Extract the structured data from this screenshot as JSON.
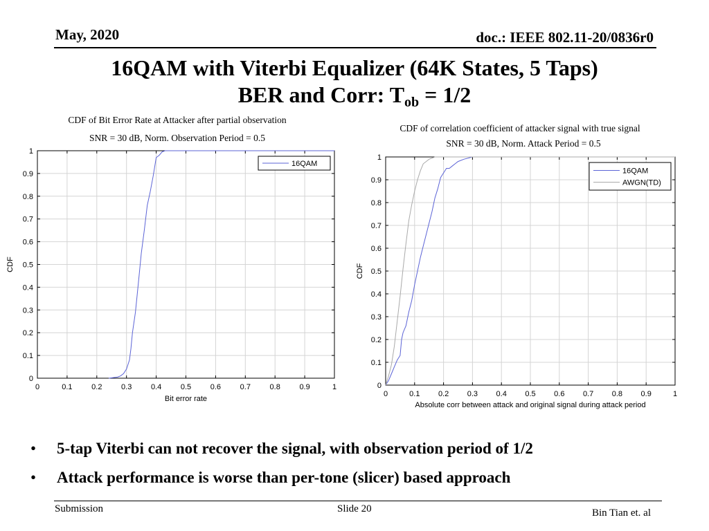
{
  "header": {
    "date": "May, 2020",
    "doc": "doc.: IEEE 802.11-20/0836r0"
  },
  "slide_title": {
    "line1": "16QAM with Viterbi Equalizer (64K States, 5 Taps)",
    "line2_prefix": "BER and Corr: T",
    "line2_sub": "ob",
    "line2_suffix": " = 1/2"
  },
  "chart_data": [
    {
      "type": "line",
      "title": "CDF of Bit Error Rate at Attacker after partial observation",
      "subtitle": "SNR = 30 dB, Norm. Observation Period = 0.5",
      "xlabel": "Bit error rate",
      "ylabel": "CDF",
      "xlim": [
        0,
        1
      ],
      "ylim": [
        0,
        1
      ],
      "x_ticks": [
        "0",
        "0.1",
        "0.2",
        "0.3",
        "0.4",
        "0.5",
        "0.6",
        "0.7",
        "0.8",
        "0.9",
        "1"
      ],
      "y_ticks": [
        "0",
        "0.1",
        "0.2",
        "0.3",
        "0.4",
        "0.5",
        "0.6",
        "0.7",
        "0.8",
        "0.9",
        "1"
      ],
      "grid": true,
      "legend_position": "top-right",
      "series": [
        {
          "name": "16QAM",
          "color": "#5b63d6",
          "points": [
            [
              0.24,
              0
            ],
            [
              0.27,
              0.005
            ],
            [
              0.28,
              0.01
            ],
            [
              0.29,
              0.02
            ],
            [
              0.3,
              0.04
            ],
            [
              0.31,
              0.08
            ],
            [
              0.315,
              0.13
            ],
            [
              0.32,
              0.2
            ],
            [
              0.33,
              0.29
            ],
            [
              0.34,
              0.42
            ],
            [
              0.35,
              0.55
            ],
            [
              0.36,
              0.65
            ],
            [
              0.37,
              0.76
            ],
            [
              0.38,
              0.82
            ],
            [
              0.39,
              0.89
            ],
            [
              0.4,
              0.97
            ],
            [
              0.41,
              0.98
            ],
            [
              0.42,
              0.995
            ],
            [
              0.43,
              1
            ],
            [
              1,
              1
            ]
          ]
        }
      ]
    },
    {
      "type": "line",
      "title": "CDF of correlation coefficient of attacker signal with true signal",
      "subtitle": "SNR = 30 dB, Norm. Attack Period = 0.5",
      "xlabel": "Absolute corr between attack and original signal during attack period",
      "ylabel": "CDF",
      "xlim": [
        0,
        1
      ],
      "ylim": [
        0,
        1
      ],
      "x_ticks": [
        "0",
        "0.1",
        "0.2",
        "0.3",
        "0.4",
        "0.5",
        "0.6",
        "0.7",
        "0.8",
        "0.9",
        "1"
      ],
      "y_ticks": [
        "0",
        "0.1",
        "0.2",
        "0.3",
        "0.4",
        "0.5",
        "0.6",
        "0.7",
        "0.8",
        "0.9",
        "1"
      ],
      "grid": true,
      "legend_position": "top-right",
      "series": [
        {
          "name": "16QAM",
          "color": "#5b63d6",
          "points": [
            [
              0,
              0
            ],
            [
              0.01,
              0.02
            ],
            [
              0.02,
              0.05
            ],
            [
              0.03,
              0.08
            ],
            [
              0.04,
              0.11
            ],
            [
              0.05,
              0.13
            ],
            [
              0.055,
              0.2
            ],
            [
              0.06,
              0.23
            ],
            [
              0.07,
              0.26
            ],
            [
              0.08,
              0.32
            ],
            [
              0.09,
              0.37
            ],
            [
              0.1,
              0.44
            ],
            [
              0.11,
              0.5
            ],
            [
              0.12,
              0.56
            ],
            [
              0.13,
              0.61
            ],
            [
              0.14,
              0.66
            ],
            [
              0.15,
              0.71
            ],
            [
              0.16,
              0.76
            ],
            [
              0.17,
              0.82
            ],
            [
              0.18,
              0.86
            ],
            [
              0.19,
              0.91
            ],
            [
              0.2,
              0.93
            ],
            [
              0.21,
              0.95
            ],
            [
              0.22,
              0.95
            ],
            [
              0.23,
              0.96
            ],
            [
              0.24,
              0.97
            ],
            [
              0.25,
              0.98
            ],
            [
              0.27,
              0.99
            ],
            [
              0.3,
              1
            ],
            [
              1,
              1
            ]
          ]
        },
        {
          "name": "AWGN(TD)",
          "color": "#a9a9a9",
          "points": [
            [
              0,
              0
            ],
            [
              0.01,
              0.04
            ],
            [
              0.02,
              0.09
            ],
            [
              0.03,
              0.17
            ],
            [
              0.04,
              0.28
            ],
            [
              0.05,
              0.39
            ],
            [
              0.06,
              0.51
            ],
            [
              0.07,
              0.62
            ],
            [
              0.08,
              0.72
            ],
            [
              0.09,
              0.79
            ],
            [
              0.1,
              0.85
            ],
            [
              0.11,
              0.9
            ],
            [
              0.12,
              0.94
            ],
            [
              0.13,
              0.97
            ],
            [
              0.14,
              0.98
            ],
            [
              0.15,
              0.99
            ],
            [
              0.17,
              1
            ],
            [
              1,
              1
            ]
          ]
        }
      ]
    }
  ],
  "bullets": [
    "5-tap Viterbi can not recover the signal, with observation period of 1/2",
    "Attack performance is worse than per-tone (slicer) based approach"
  ],
  "footer": {
    "left": "Submission",
    "center": "Slide 20",
    "right": "Bin Tian et. al"
  }
}
